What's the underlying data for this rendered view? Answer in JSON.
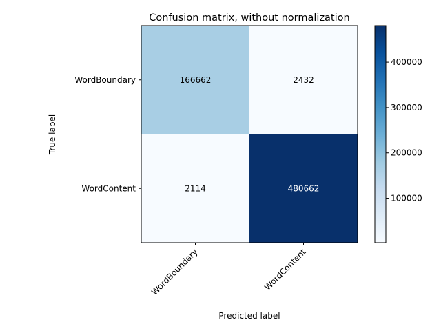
{
  "chart_data": {
    "type": "heatmap",
    "title": "Confusion matrix, without normalization",
    "xlabel": "Predicted label",
    "ylabel": "True label",
    "x_categories": [
      "WordBoundary",
      "WordContent"
    ],
    "y_categories": [
      "WordBoundary",
      "WordContent"
    ],
    "values": [
      [
        166662,
        2432
      ],
      [
        2114,
        480662
      ]
    ],
    "colormap": "Blues",
    "color_range": [
      2114,
      480662
    ],
    "colorbar_ticks": [
      100000,
      200000,
      300000,
      400000
    ],
    "grid": false,
    "x_tick_rotation": "45 degrees"
  }
}
